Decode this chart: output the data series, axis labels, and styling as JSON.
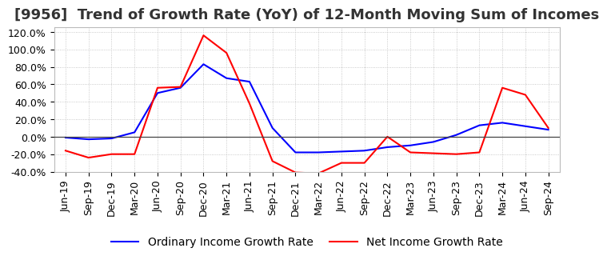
{
  "title": "[9956]  Trend of Growth Rate (YoY) of 12-Month Moving Sum of Incomes",
  "ylim": [
    -0.4,
    1.25
  ],
  "yticks": [
    -0.4,
    -0.2,
    0.0,
    0.2,
    0.4,
    0.6,
    0.8,
    1.0,
    1.2
  ],
  "ytick_labels": [
    "-40.0%",
    "-20.0%",
    "0.0%",
    "20.0%",
    "40.0%",
    "60.0%",
    "80.0%",
    "100.0%",
    "120.0%"
  ],
  "x_labels": [
    "Jun-19",
    "Sep-19",
    "Dec-19",
    "Mar-20",
    "Jun-20",
    "Sep-20",
    "Dec-20",
    "Mar-21",
    "Jun-21",
    "Sep-21",
    "Dec-21",
    "Mar-22",
    "Jun-22",
    "Sep-22",
    "Dec-22",
    "Mar-23",
    "Jun-23",
    "Sep-23",
    "Dec-23",
    "Mar-24",
    "Jun-24",
    "Sep-24"
  ],
  "ordinary_income": [
    -0.01,
    -0.03,
    -0.02,
    0.05,
    0.5,
    0.56,
    0.83,
    0.67,
    0.63,
    0.1,
    -0.18,
    -0.18,
    -0.17,
    -0.16,
    -0.12,
    -0.1,
    -0.06,
    0.02,
    0.13,
    0.16,
    0.12,
    0.08
  ],
  "net_income": [
    -0.16,
    -0.24,
    -0.2,
    -0.2,
    0.56,
    0.57,
    1.16,
    0.96,
    0.38,
    -0.28,
    -0.41,
    -0.42,
    -0.3,
    -0.3,
    0.0,
    -0.18,
    -0.19,
    -0.2,
    -0.18,
    0.56,
    0.48,
    0.1
  ],
  "ordinary_color": "#0000ff",
  "net_color": "#ff0000",
  "legend_labels": [
    "Ordinary Income Growth Rate",
    "Net Income Growth Rate"
  ],
  "background_color": "#ffffff",
  "grid_color": "#bbbbbb",
  "title_color": "#333333",
  "title_fontsize": 13,
  "tick_fontsize": 9
}
